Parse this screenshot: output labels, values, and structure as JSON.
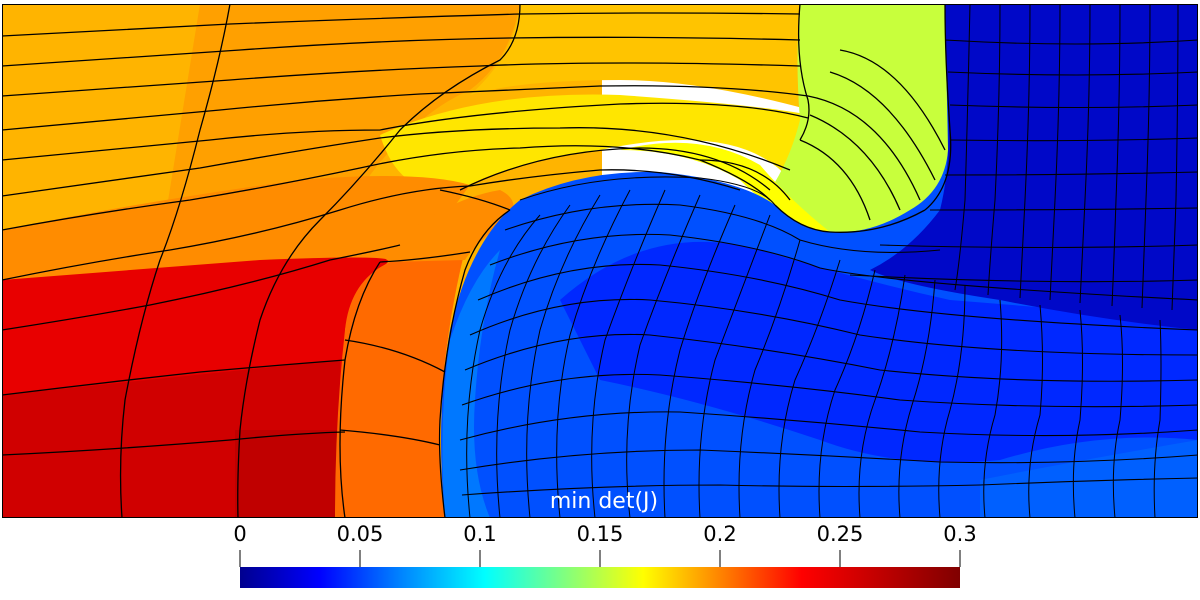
{
  "visualization": {
    "colorbar": {
      "title": "min det(J)",
      "tick_labels": [
        "0",
        "0.05",
        "0.1",
        "0.15",
        "0.2",
        "0.25",
        "0.3"
      ],
      "range": [
        0,
        0.3
      ],
      "colormap": "jet",
      "colormap_stops": [
        "#00008f",
        "#0000ff",
        "#0080ff",
        "#00ffff",
        "#80ff80",
        "#ffff00",
        "#ff8000",
        "#ff0000",
        "#800000"
      ]
    },
    "mesh": {
      "edge_color": "#000000",
      "region_colors": {
        "upper_left": "#ffc000",
        "upper_middle": "#ffa500",
        "upper_right_top": "#ffd000",
        "yellow_band": "#ffff00",
        "lime_region": "#c8ff3c",
        "orange_band": "#ff8c00",
        "lower_left_red": "#e60000",
        "lower_left_dark": "#c00000",
        "orange_column": "#ff6a00",
        "blue_swirl": "#0050ff",
        "light_blue_patch": "#0080ff",
        "dark_blue_right": "#0000c8",
        "deep_blue": "#0014ff"
      }
    }
  }
}
